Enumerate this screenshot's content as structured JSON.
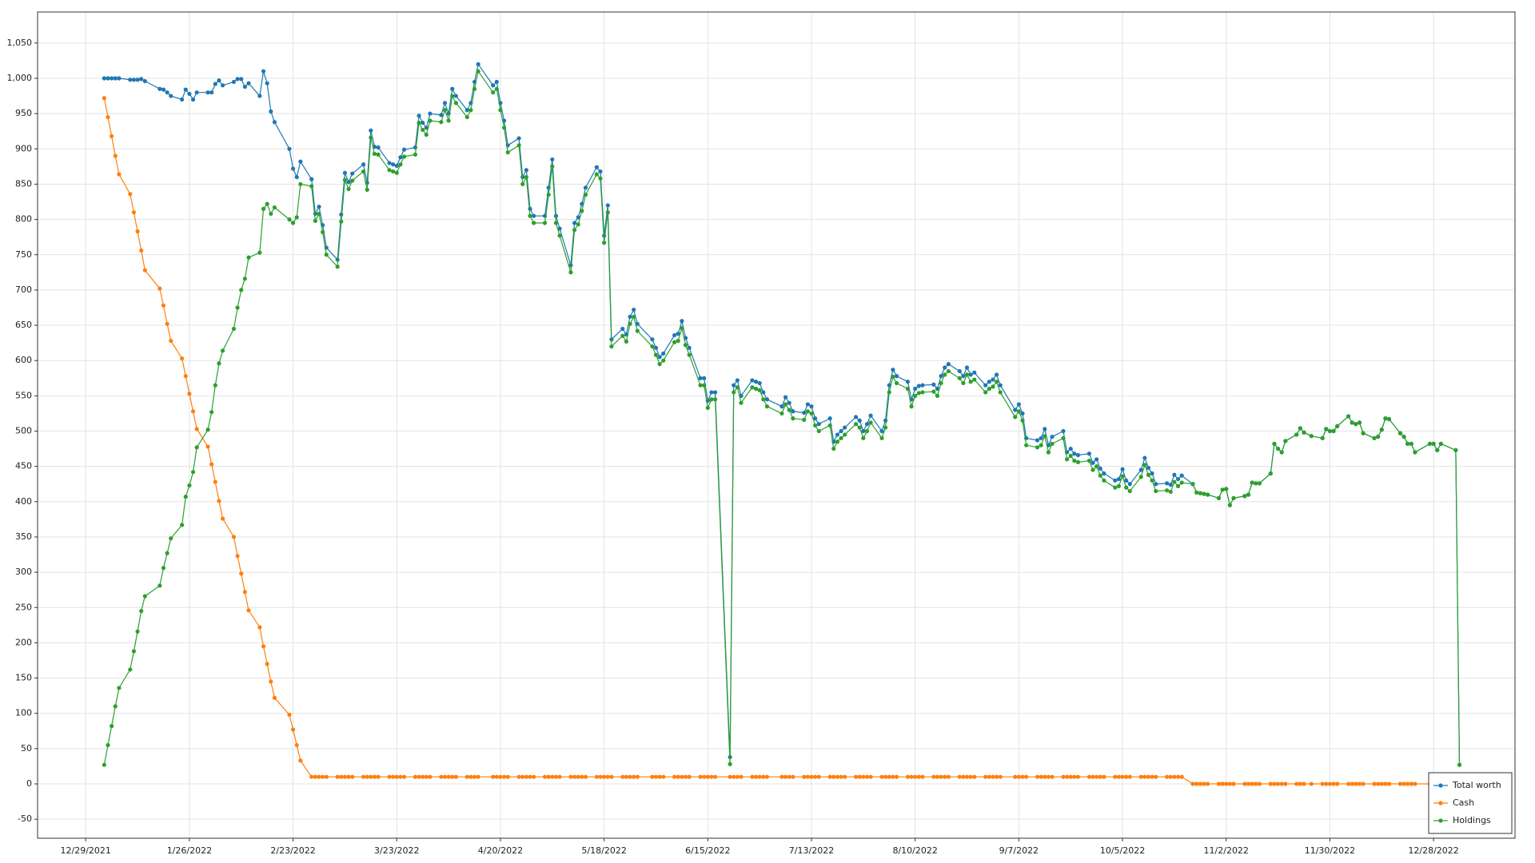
{
  "chart_data": {
    "type": "line",
    "x": [
      "2022-01-03",
      "2022-01-04",
      "2022-01-05",
      "2022-01-06",
      "2022-01-07",
      "2022-01-10",
      "2022-01-11",
      "2022-01-12",
      "2022-01-13",
      "2022-01-14",
      "2022-01-18",
      "2022-01-19",
      "2022-01-20",
      "2022-01-21",
      "2022-01-24",
      "2022-01-25",
      "2022-01-26",
      "2022-01-27",
      "2022-01-28",
      "2022-01-31",
      "2022-02-01",
      "2022-02-02",
      "2022-02-03",
      "2022-02-04",
      "2022-02-07",
      "2022-02-08",
      "2022-02-09",
      "2022-02-10",
      "2022-02-11",
      "2022-02-14",
      "2022-02-15",
      "2022-02-16",
      "2022-02-17",
      "2022-02-18",
      "2022-02-22",
      "2022-02-23",
      "2022-02-24",
      "2022-02-25",
      "2022-02-28",
      "2022-03-01",
      "2022-03-02",
      "2022-03-03",
      "2022-03-04",
      "2022-03-07",
      "2022-03-08",
      "2022-03-09",
      "2022-03-10",
      "2022-03-11",
      "2022-03-14",
      "2022-03-15",
      "2022-03-16",
      "2022-03-17",
      "2022-03-18",
      "2022-03-21",
      "2022-03-22",
      "2022-03-23",
      "2022-03-24",
      "2022-03-25",
      "2022-03-28",
      "2022-03-29",
      "2022-03-30",
      "2022-03-31",
      "2022-04-01",
      "2022-04-04",
      "2022-04-05",
      "2022-04-06",
      "2022-04-07",
      "2022-04-08",
      "2022-04-11",
      "2022-04-12",
      "2022-04-13",
      "2022-04-14",
      "2022-04-18",
      "2022-04-19",
      "2022-04-20",
      "2022-04-21",
      "2022-04-22",
      "2022-04-25",
      "2022-04-26",
      "2022-04-27",
      "2022-04-28",
      "2022-04-29",
      "2022-05-02",
      "2022-05-03",
      "2022-05-04",
      "2022-05-05",
      "2022-05-06",
      "2022-05-09",
      "2022-05-10",
      "2022-05-11",
      "2022-05-12",
      "2022-05-13",
      "2022-05-16",
      "2022-05-17",
      "2022-05-18",
      "2022-05-19",
      "2022-05-20",
      "2022-05-23",
      "2022-05-24",
      "2022-05-25",
      "2022-05-26",
      "2022-05-27",
      "2022-05-31",
      "2022-06-01",
      "2022-06-02",
      "2022-06-03",
      "2022-06-06",
      "2022-06-07",
      "2022-06-08",
      "2022-06-09",
      "2022-06-10",
      "2022-06-13",
      "2022-06-14",
      "2022-06-15",
      "2022-06-16",
      "2022-06-17",
      "2022-06-21",
      "2022-06-22",
      "2022-06-23",
      "2022-06-24",
      "2022-06-27",
      "2022-06-28",
      "2022-06-29",
      "2022-06-30",
      "2022-07-01",
      "2022-07-05",
      "2022-07-06",
      "2022-07-07",
      "2022-07-08",
      "2022-07-11",
      "2022-07-12",
      "2022-07-13",
      "2022-07-14",
      "2022-07-15",
      "2022-07-18",
      "2022-07-19",
      "2022-07-20",
      "2022-07-21",
      "2022-07-22",
      "2022-07-25",
      "2022-07-26",
      "2022-07-27",
      "2022-07-28",
      "2022-07-29",
      "2022-08-01",
      "2022-08-02",
      "2022-08-03",
      "2022-08-04",
      "2022-08-05",
      "2022-08-08",
      "2022-08-09",
      "2022-08-10",
      "2022-08-11",
      "2022-08-12",
      "2022-08-15",
      "2022-08-16",
      "2022-08-17",
      "2022-08-18",
      "2022-08-19",
      "2022-08-22",
      "2022-08-23",
      "2022-08-24",
      "2022-08-25",
      "2022-08-26",
      "2022-08-29",
      "2022-08-30",
      "2022-08-31",
      "2022-09-01",
      "2022-09-02",
      "2022-09-06",
      "2022-09-07",
      "2022-09-08",
      "2022-09-09",
      "2022-09-12",
      "2022-09-13",
      "2022-09-14",
      "2022-09-15",
      "2022-09-16",
      "2022-09-19",
      "2022-09-20",
      "2022-09-21",
      "2022-09-22",
      "2022-09-23",
      "2022-09-26",
      "2022-09-27",
      "2022-09-28",
      "2022-09-29",
      "2022-09-30",
      "2022-10-03",
      "2022-10-04",
      "2022-10-05",
      "2022-10-06",
      "2022-10-07",
      "2022-10-10",
      "2022-10-11",
      "2022-10-12",
      "2022-10-13",
      "2022-10-14",
      "2022-10-17",
      "2022-10-18",
      "2022-10-19",
      "2022-10-20",
      "2022-10-21",
      "2022-10-24",
      "2022-10-25",
      "2022-10-26",
      "2022-10-27",
      "2022-10-28",
      "2022-10-31",
      "2022-11-01",
      "2022-11-02",
      "2022-11-03",
      "2022-11-04",
      "2022-11-07",
      "2022-11-08",
      "2022-11-09",
      "2022-11-10",
      "2022-11-11",
      "2022-11-14",
      "2022-11-15",
      "2022-11-16",
      "2022-11-17",
      "2022-11-18",
      "2022-11-21",
      "2022-11-22",
      "2022-11-23",
      "2022-11-25",
      "2022-11-28",
      "2022-11-29",
      "2022-11-30",
      "2022-12-01",
      "2022-12-02",
      "2022-12-05",
      "2022-12-06",
      "2022-12-07",
      "2022-12-08",
      "2022-12-09",
      "2022-12-12",
      "2022-12-13",
      "2022-12-14",
      "2022-12-15",
      "2022-12-16",
      "2022-12-19",
      "2022-12-20",
      "2022-12-21",
      "2022-12-22",
      "2022-12-23",
      "2022-12-27",
      "2022-12-28",
      "2022-12-29",
      "2022-12-30",
      "2023-01-03",
      "2023-01-04"
    ],
    "series": [
      {
        "name": "Total worth",
        "color": "#1f77b4",
        "values": [
          1000,
          1000,
          1000,
          1000,
          1000,
          998,
          998,
          998,
          999,
          996,
          985,
          984,
          980,
          975,
          970,
          984,
          978,
          970,
          980,
          980,
          980,
          992,
          997,
          990,
          995,
          999,
          999,
          988,
          993,
          975,
          1010,
          993,
          953,
          938,
          900,
          872,
          860,
          882,
          857,
          808,
          818,
          792,
          760,
          743,
          807,
          866,
          853,
          865,
          878,
          852,
          926,
          903,
          902,
          880,
          878,
          876,
          888,
          899,
          902,
          947,
          937,
          930,
          950,
          948,
          965,
          950,
          985,
          975,
          955,
          965,
          995,
          1020,
          990,
          995,
          965,
          940,
          905,
          915,
          860,
          870,
          815,
          805,
          805,
          845,
          885,
          805,
          787,
          735,
          795,
          803,
          822,
          845,
          874,
          868,
          777,
          820,
          630,
          645,
          637,
          662,
          672,
          652,
          630,
          618,
          605,
          610,
          636,
          638,
          656,
          632,
          618,
          575,
          575,
          543,
          555,
          555,
          38,
          565,
          572,
          550,
          572,
          570,
          568,
          555,
          545,
          535,
          548,
          540,
          528,
          526,
          538,
          535,
          518,
          510,
          518,
          485,
          495,
          500,
          505,
          520,
          515,
          500,
          510,
          522,
          500,
          515,
          565,
          587,
          578,
          570,
          545,
          560,
          564,
          565,
          566,
          560,
          578,
          590,
          595,
          585,
          578,
          590,
          580,
          583,
          565,
          570,
          573,
          580,
          565,
          530,
          538,
          525,
          490,
          487,
          490,
          503,
          480,
          492,
          500,
          470,
          475,
          468,
          466,
          468,
          455,
          460,
          447,
          440,
          430,
          432,
          446,
          430,
          425,
          445,
          462,
          448,
          440,
          425,
          426,
          424,
          438,
          432,
          437,
          425,
          413,
          412,
          411,
          410,
          405,
          417,
          418,
          395,
          405,
          408,
          410,
          427,
          426,
          426,
          440,
          482,
          475,
          470,
          486,
          495,
          504,
          498,
          493,
          490,
          503,
          500,
          500,
          507,
          521,
          512,
          510,
          512,
          497,
          490,
          492,
          502,
          518,
          517,
          497,
          492,
          482,
          482,
          470,
          482,
          482,
          473,
          482,
          473,
          27
        ]
      },
      {
        "name": "Cash",
        "color": "#ff7f0e",
        "values": [
          972,
          945,
          918,
          890,
          864,
          836,
          810,
          783,
          756,
          728,
          702,
          678,
          652,
          628,
          603,
          578,
          553,
          528,
          503,
          478,
          453,
          428,
          401,
          376,
          350,
          323,
          298,
          272,
          246,
          222,
          195,
          170,
          145,
          122,
          98,
          77,
          55,
          33,
          10,
          10,
          10,
          10,
          10,
          10,
          10,
          10,
          10,
          10,
          10,
          10,
          10,
          10,
          10,
          10,
          10,
          10,
          10,
          10,
          10,
          10,
          10,
          10,
          10,
          10,
          10,
          10,
          10,
          10,
          10,
          10,
          10,
          10,
          10,
          10,
          10,
          10,
          10,
          10,
          10,
          10,
          10,
          10,
          10,
          10,
          10,
          10,
          10,
          10,
          10,
          10,
          10,
          10,
          10,
          10,
          10,
          10,
          10,
          10,
          10,
          10,
          10,
          10,
          10,
          10,
          10,
          10,
          10,
          10,
          10,
          10,
          10,
          10,
          10,
          10,
          10,
          10,
          10,
          10,
          10,
          10,
          10,
          10,
          10,
          10,
          10,
          10,
          10,
          10,
          10,
          10,
          10,
          10,
          10,
          10,
          10,
          10,
          10,
          10,
          10,
          10,
          10,
          10,
          10,
          10,
          10,
          10,
          10,
          10,
          10,
          10,
          10,
          10,
          10,
          10,
          10,
          10,
          10,
          10,
          10,
          10,
          10,
          10,
          10,
          10,
          10,
          10,
          10,
          10,
          10,
          10,
          10,
          10,
          10,
          10,
          10,
          10,
          10,
          10,
          10,
          10,
          10,
          10,
          10,
          10,
          10,
          10,
          10,
          10,
          10,
          10,
          10,
          10,
          10,
          10,
          10,
          10,
          10,
          10,
          10,
          10,
          10,
          10,
          10,
          0,
          0,
          0,
          0,
          0,
          0,
          0,
          0,
          0,
          0,
          0,
          0,
          0,
          0,
          0,
          0,
          0,
          0,
          0,
          0,
          0,
          0,
          0,
          0,
          0,
          0,
          0,
          0,
          0,
          0,
          0,
          0,
          0,
          0,
          0,
          0,
          0,
          0,
          0,
          0,
          0,
          0,
          0,
          0,
          0,
          0,
          0,
          0,
          0,
          0
        ]
      },
      {
        "name": "Holdings",
        "color": "#2ca02c",
        "values": [
          27,
          55,
          82,
          110,
          136,
          162,
          188,
          216,
          245,
          266,
          281,
          306,
          327,
          348,
          367,
          407,
          423,
          442,
          477,
          502,
          527,
          565,
          596,
          614,
          645,
          675,
          700,
          716,
          746,
          753,
          815,
          822,
          808,
          817,
          800,
          795,
          803,
          850,
          847,
          798,
          808,
          782,
          750,
          733,
          797,
          856,
          843,
          855,
          868,
          842,
          916,
          893,
          892,
          870,
          868,
          866,
          878,
          889,
          892,
          937,
          927,
          920,
          940,
          938,
          955,
          940,
          975,
          965,
          945,
          955,
          985,
          1010,
          980,
          985,
          955,
          930,
          895,
          905,
          850,
          860,
          805,
          795,
          795,
          835,
          875,
          795,
          777,
          725,
          785,
          793,
          812,
          835,
          864,
          858,
          767,
          810,
          620,
          635,
          627,
          652,
          662,
          642,
          620,
          608,
          595,
          600,
          626,
          628,
          646,
          622,
          608,
          565,
          565,
          533,
          545,
          545,
          28,
          555,
          562,
          540,
          562,
          560,
          558,
          545,
          535,
          525,
          538,
          530,
          518,
          516,
          528,
          525,
          508,
          500,
          508,
          475,
          485,
          490,
          495,
          510,
          505,
          490,
          500,
          512,
          490,
          505,
          555,
          577,
          568,
          560,
          535,
          550,
          554,
          555,
          556,
          550,
          568,
          580,
          585,
          575,
          568,
          580,
          570,
          573,
          555,
          560,
          563,
          570,
          555,
          520,
          528,
          515,
          480,
          477,
          480,
          493,
          470,
          482,
          490,
          460,
          465,
          458,
          456,
          458,
          445,
          450,
          437,
          430,
          420,
          422,
          436,
          420,
          415,
          435,
          452,
          438,
          430,
          415,
          416,
          414,
          428,
          422,
          427,
          425,
          413,
          412,
          411,
          410,
          405,
          417,
          418,
          395,
          405,
          408,
          410,
          427,
          426,
          426,
          440,
          482,
          475,
          470,
          486,
          495,
          504,
          498,
          493,
          490,
          503,
          500,
          500,
          507,
          521,
          512,
          510,
          512,
          497,
          490,
          492,
          502,
          518,
          517,
          497,
          492,
          482,
          482,
          470,
          482,
          482,
          473,
          482,
          473,
          27
        ]
      }
    ],
    "xlim": [
      "2021-12-16",
      "2023-01-19"
    ],
    "xticks": [
      {
        "value": "2021-12-29",
        "label": "12/29/2021"
      },
      {
        "value": "2022-01-26",
        "label": "1/26/2022"
      },
      {
        "value": "2022-02-23",
        "label": "2/23/2022"
      },
      {
        "value": "2022-03-23",
        "label": "3/23/2022"
      },
      {
        "value": "2022-04-20",
        "label": "4/20/2022"
      },
      {
        "value": "2022-05-18",
        "label": "5/18/2022"
      },
      {
        "value": "2022-06-15",
        "label": "6/15/2022"
      },
      {
        "value": "2022-07-13",
        "label": "7/13/2022"
      },
      {
        "value": "2022-08-10",
        "label": "8/10/2022"
      },
      {
        "value": "2022-09-07",
        "label": "9/7/2022"
      },
      {
        "value": "2022-10-05",
        "label": "10/5/2022"
      },
      {
        "value": "2022-11-02",
        "label": "11/2/2022"
      },
      {
        "value": "2022-11-30",
        "label": "11/30/2022"
      },
      {
        "value": "2022-12-28",
        "label": "12/28/2022"
      }
    ],
    "ylim": [
      -77,
      1094
    ],
    "yticks": [
      -50,
      0,
      50,
      100,
      150,
      200,
      250,
      300,
      350,
      400,
      450,
      500,
      550,
      600,
      650,
      700,
      750,
      800,
      850,
      900,
      950,
      {
        "value": 1000,
        "label": "1,000"
      },
      {
        "value": 1050,
        "label": "1,050"
      }
    ],
    "grid": true,
    "legend": "lower right"
  }
}
